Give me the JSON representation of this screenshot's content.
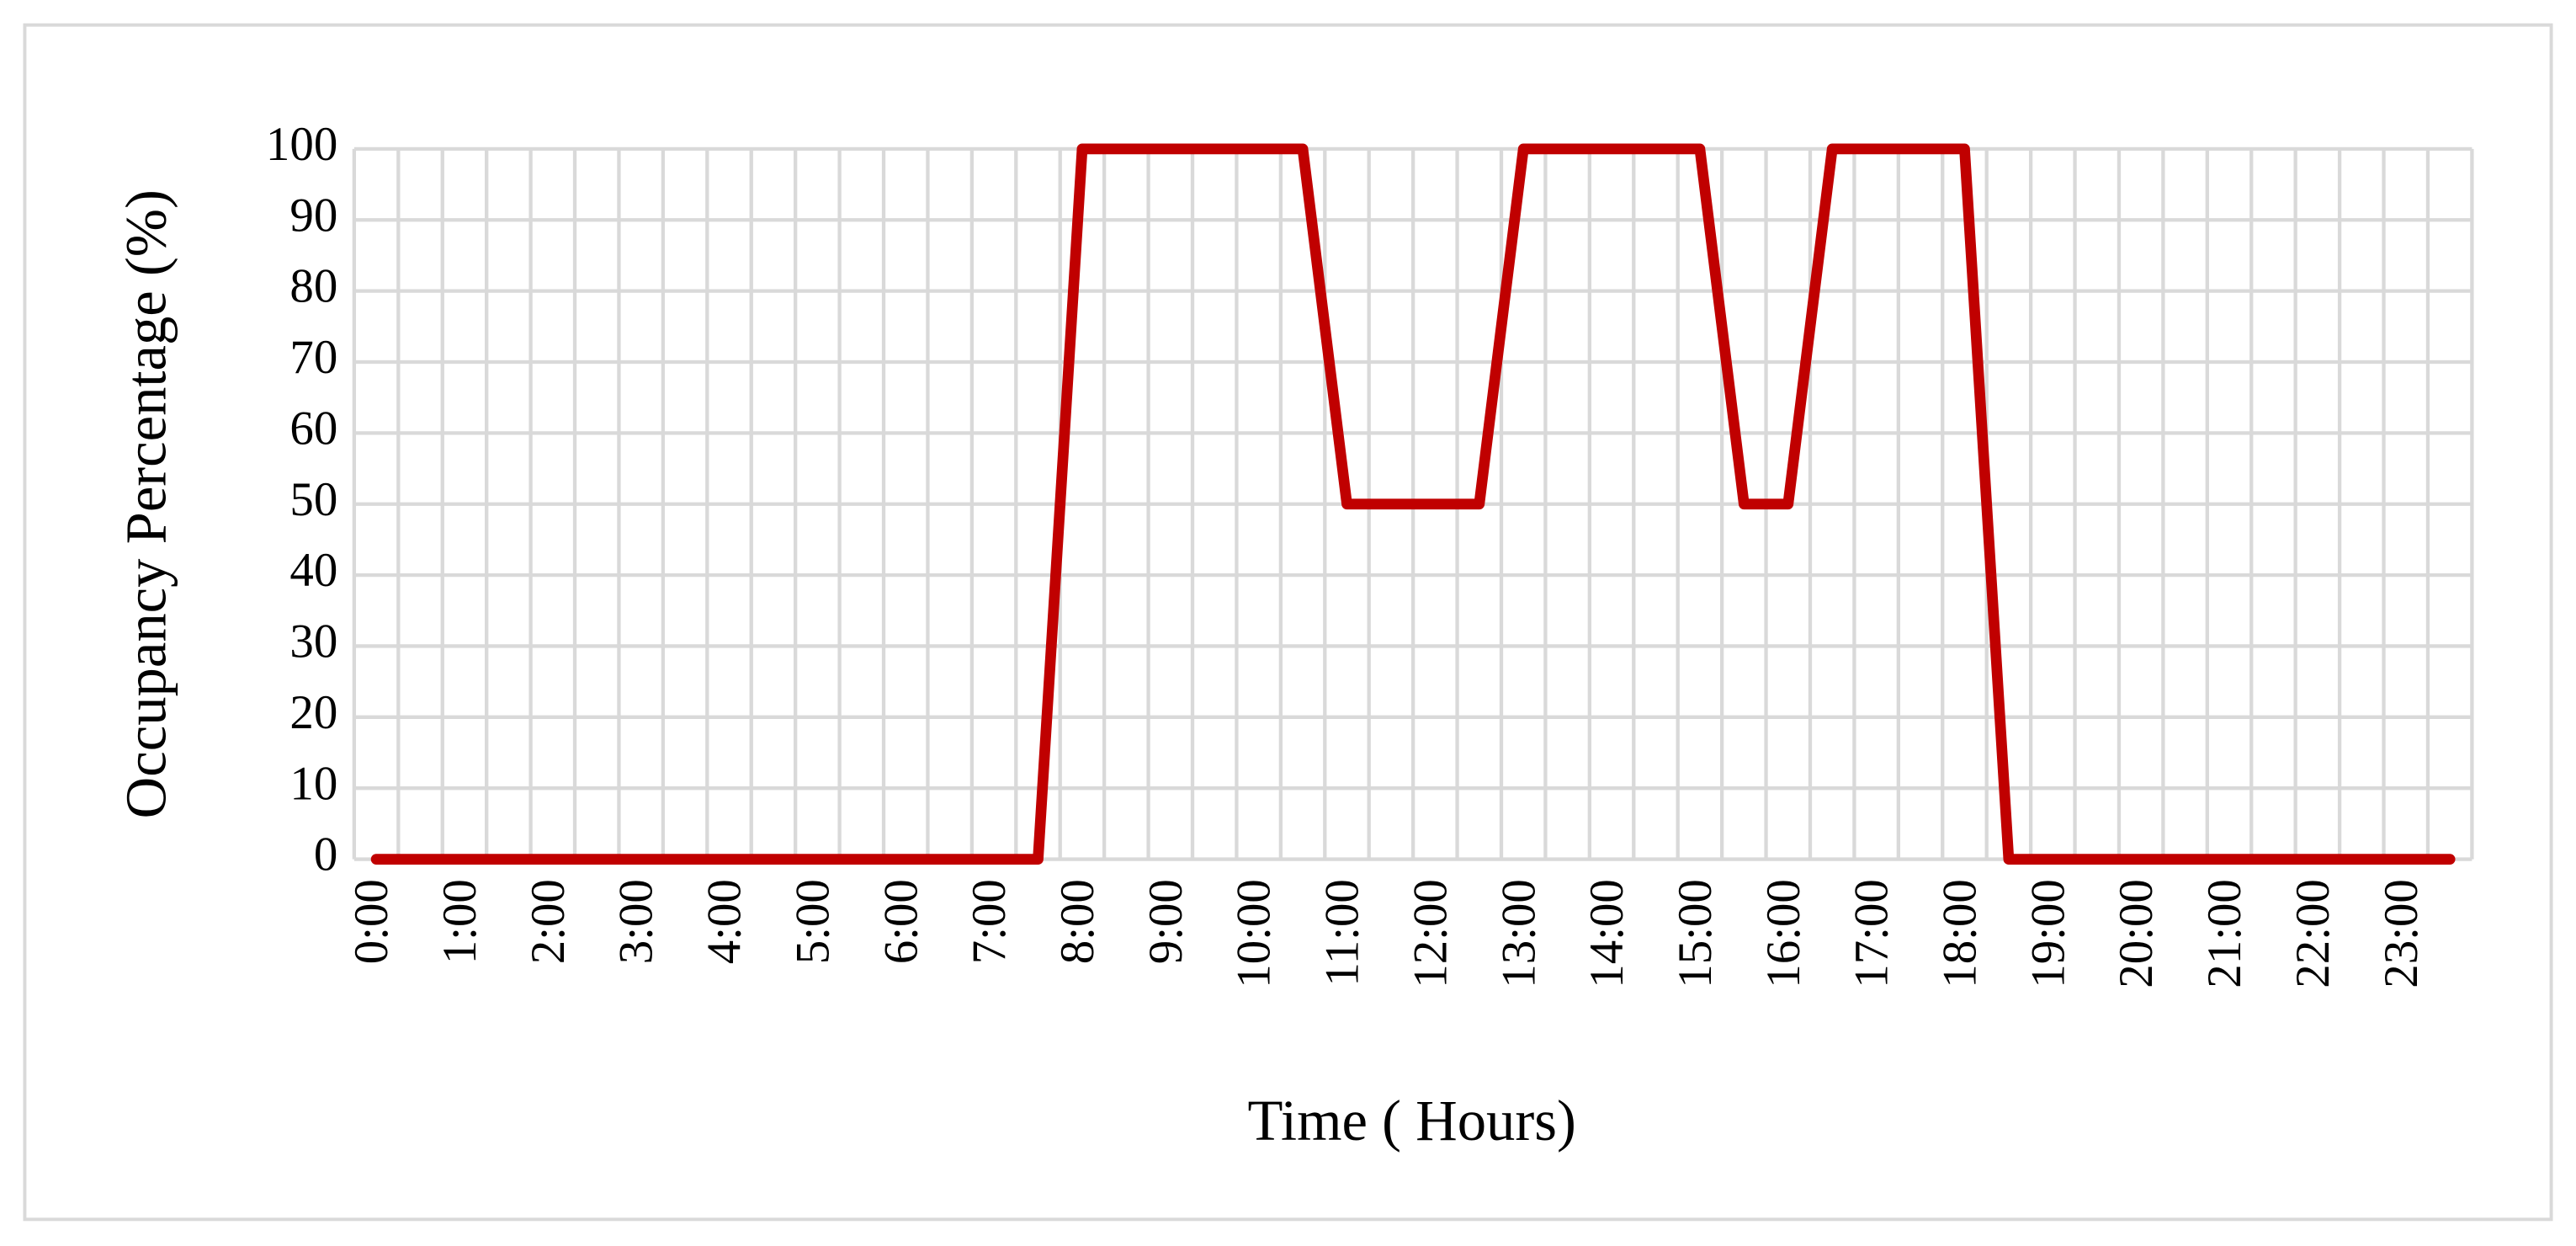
{
  "chart_data": {
    "type": "line",
    "x_label": "Time ( Hours)",
    "y_label": "Occupancy Percentage (%)",
    "categories": [
      "0:00",
      null,
      "1:00",
      null,
      "2:00",
      null,
      "3:00",
      null,
      "4:00",
      null,
      "5:00",
      null,
      "6:00",
      null,
      "7:00",
      null,
      "8:00",
      null,
      "9:00",
      null,
      "10:00",
      null,
      "11:00",
      null,
      "12:00",
      null,
      "13:00",
      null,
      "14:00",
      null,
      "15:00",
      null,
      "16:00",
      null,
      "17:00",
      null,
      "18:00",
      null,
      "19:00",
      null,
      "20:00",
      null,
      "21:00",
      null,
      "22:00",
      null,
      "23:00",
      null
    ],
    "values": [
      0,
      0,
      0,
      0,
      0,
      0,
      0,
      0,
      0,
      0,
      0,
      0,
      0,
      0,
      0,
      0,
      100,
      100,
      100,
      100,
      100,
      100,
      50,
      50,
      50,
      50,
      100,
      100,
      100,
      100,
      100,
      50,
      50,
      100,
      100,
      100,
      100,
      0,
      0,
      0,
      0,
      0,
      0,
      0,
      0,
      0,
      0,
      0
    ],
    "color": "#c00000",
    "ylim": [
      0,
      100
    ],
    "yticks": [
      0,
      10,
      20,
      30,
      40,
      50,
      60,
      70,
      80,
      90,
      100
    ],
    "grid": true
  }
}
